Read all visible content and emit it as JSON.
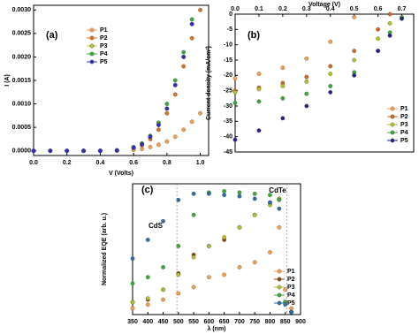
{
  "chart_data": [
    {
      "type": "line",
      "panel_label": "(a)",
      "x_label": "V (Volts)",
      "y_label": "I (A)",
      "x": [
        0,
        0.1,
        0.2,
        0.3,
        0.4,
        0.5,
        0.6,
        0.65,
        0.7,
        0.75,
        0.8,
        0.85,
        0.9,
        0.95,
        1.0
      ],
      "series": [
        {
          "name": "P1",
          "color": "#f7a050",
          "values": [
            0,
            0,
            0,
            0,
            0,
            0,
            2e-05,
            4e-05,
            8e-05,
            0.00013,
            0.0002,
            0.0003,
            0.00045,
            0.00062,
            0.0008
          ]
        },
        {
          "name": "P2",
          "color": "#e07020",
          "values": [
            0,
            0,
            0,
            0,
            0,
            1e-05,
            6e-05,
            0.00012,
            0.00025,
            0.00045,
            0.0008,
            0.0012,
            0.0018,
            0.0024,
            0.003
          ]
        },
        {
          "name": "P3",
          "color": "#b8c030",
          "values": [
            0,
            0,
            0,
            0,
            0,
            1e-05,
            7e-05,
            0.00014,
            0.0003,
            0.00055,
            0.0009,
            0.0014,
            0.002,
            0.0027,
            null
          ]
        },
        {
          "name": "P4",
          "color": "#3aac3a",
          "values": [
            0,
            0,
            0,
            0,
            0,
            1e-05,
            8e-05,
            0.00016,
            0.00032,
            0.0006,
            0.001,
            0.0015,
            0.0021,
            0.0028,
            null
          ]
        },
        {
          "name": "P5",
          "color": "#3030c0",
          "values": [
            0,
            0,
            0,
            0,
            0,
            1e-05,
            7e-05,
            0.00014,
            0.0003,
            0.00055,
            0.0009,
            0.0014,
            0.002,
            0.0027,
            null
          ]
        }
      ],
      "xlim": [
        0,
        1.05
      ],
      "xticks": [
        {
          "value": 0,
          "label": "0.0"
        },
        {
          "value": 0.2,
          "label": "0.2"
        },
        {
          "value": 0.4,
          "label": "0.4"
        },
        {
          "value": 0.6,
          "label": "0.6"
        },
        {
          "value": 0.8,
          "label": "0.8"
        },
        {
          "value": 1.0,
          "label": "1.0"
        }
      ],
      "ylim": [
        -0.0001,
        0.0031
      ],
      "yticks": [
        {
          "value": 0,
          "label": "0.0000"
        },
        {
          "value": 0.0005,
          "label": "0.0005"
        },
        {
          "value": 0.001,
          "label": "0.0010"
        },
        {
          "value": 0.0015,
          "label": "0.0015"
        },
        {
          "value": 0.002,
          "label": "0.0020"
        },
        {
          "value": 0.0025,
          "label": "0.0025"
        },
        {
          "value": 0.003,
          "label": "0.0030"
        }
      ],
      "x_axis_position": "bottom",
      "legend": "upper-left"
    },
    {
      "type": "line",
      "panel_label": "(b)",
      "x_label": "Voltage (V)",
      "y_label": "Current density (mA/cm²)",
      "x": [
        0,
        0.1,
        0.2,
        0.3,
        0.4,
        0.5,
        0.6,
        0.65,
        0.7
      ],
      "series": [
        {
          "name": "P1",
          "color": "#f7a050",
          "values": [
            -21,
            -19.5,
            -17.5,
            -14.5,
            -9,
            -1,
            null,
            null,
            null
          ]
        },
        {
          "name": "P2",
          "color": "#d2691e",
          "values": [
            -25,
            -24,
            -22.5,
            -20.5,
            -17,
            -12,
            -5,
            0,
            null
          ]
        },
        {
          "name": "P3",
          "color": "#b8c030",
          "values": [
            -25.5,
            -24.5,
            -23.5,
            -22,
            -19.5,
            -15,
            -8,
            -3,
            null
          ]
        },
        {
          "name": "P4",
          "color": "#3aac3a",
          "values": [
            -29,
            -28.5,
            -27.5,
            -26,
            -23.5,
            -19,
            -12,
            -6,
            -1
          ]
        },
        {
          "name": "P5",
          "color": "#23238e",
          "values": [
            -41,
            -38,
            -34,
            -30,
            -25.5,
            -20,
            -12,
            -7,
            -1.5
          ]
        }
      ],
      "xlim": [
        0,
        0.75
      ],
      "xticks": [
        {
          "value": 0,
          "label": "0.0"
        },
        {
          "value": 0.1,
          "label": "0.1"
        },
        {
          "value": 0.2,
          "label": "0.2"
        },
        {
          "value": 0.3,
          "label": "0.3"
        },
        {
          "value": 0.4,
          "label": "0.4"
        },
        {
          "value": 0.5,
          "label": "0.5"
        },
        {
          "value": 0.6,
          "label": "0.6"
        },
        {
          "value": 0.7,
          "label": "0.7"
        }
      ],
      "ylim": [
        -45,
        0
      ],
      "yticks": [
        0,
        -5,
        -10,
        -15,
        -20,
        -25,
        -30,
        -35,
        -40,
        -45
      ],
      "x_axis_position": "top",
      "legend": "lower-right"
    },
    {
      "type": "line",
      "panel_label": "(c)",
      "x_label": "λ (nm)",
      "y_label": "Normalized EQE (arb. u.)",
      "annotations": [
        "CdS",
        "CdTe"
      ],
      "reference_lines": [
        495,
        855
      ],
      "x": [
        350,
        400,
        450,
        500,
        550,
        600,
        650,
        700,
        750,
        800,
        830,
        850,
        870
      ],
      "series": [
        {
          "name": "P1",
          "color": "#f7a050",
          "values": [
            0.05,
            0.08,
            0.12,
            0.17,
            0.22,
            0.3,
            0.32,
            0.38,
            0.42,
            0.5,
            0.7,
            0.2,
            0.05
          ]
        },
        {
          "name": "P2",
          "color": "#8b4513",
          "values": [
            0.1,
            0.12,
            0.2,
            0.33,
            0.48,
            0.55,
            0.6,
            0.7,
            0.8,
            0.9,
            0.93,
            0.1,
            0.02
          ]
        },
        {
          "name": "P3",
          "color": "#b8c030",
          "values": [
            0.1,
            0.13,
            0.2,
            0.32,
            0.46,
            0.55,
            0.62,
            0.7,
            0.8,
            0.88,
            0.93,
            0.1,
            0.02
          ]
        },
        {
          "name": "P4",
          "color": "#3aac3a",
          "values": [
            0.25,
            0.3,
            0.38,
            0.55,
            0.8,
            0.98,
            0.99,
            0.98,
            0.97,
            0.96,
            0.92,
            0.1,
            0.02
          ]
        },
        {
          "name": "P5",
          "color": "#2e6fa8",
          "values": [
            0.45,
            0.6,
            0.75,
            0.92,
            0.97,
            0.97,
            0.96,
            0.95,
            0.93,
            0.9,
            0.85,
            0.08,
            0.02
          ]
        }
      ],
      "xlim": [
        350,
        900
      ],
      "xticks": [
        350,
        400,
        450,
        500,
        550,
        600,
        650,
        700,
        750,
        800,
        850,
        900
      ],
      "ylim": [
        0,
        1.05
      ],
      "x_axis_position": "bottom",
      "legend": "lower-right"
    }
  ]
}
